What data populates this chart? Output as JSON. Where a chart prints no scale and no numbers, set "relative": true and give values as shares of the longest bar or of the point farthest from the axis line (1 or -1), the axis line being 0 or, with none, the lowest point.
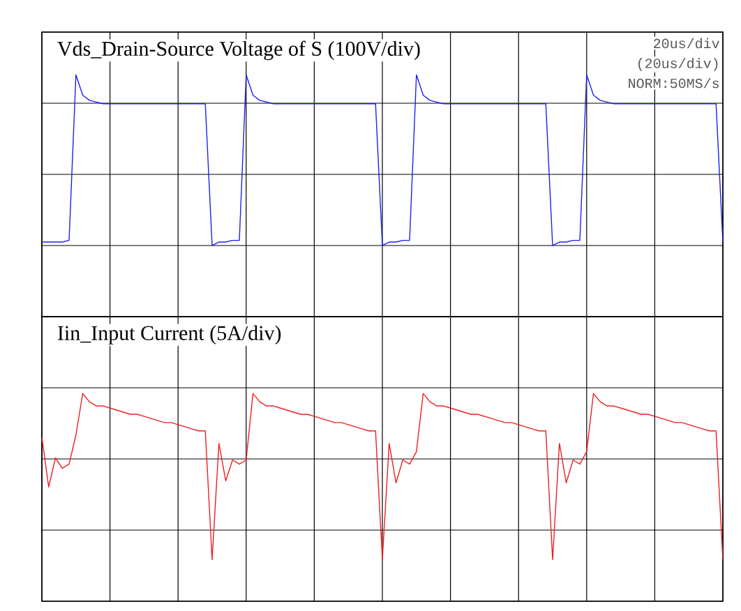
{
  "chart_data": [
    {
      "type": "line",
      "title": "Vds_Drain-Source Voltage of S (100V/div)",
      "relative": true,
      "grid": true,
      "annotations": [
        "20us/div",
        "(20us/div)",
        "NORM:50MS/s"
      ],
      "categories": [
        null,
        null,
        null,
        null,
        null,
        null,
        null,
        null,
        null,
        null,
        null,
        null,
        null,
        null,
        null,
        null,
        null,
        null,
        null,
        null,
        null,
        null,
        null,
        null,
        null,
        null,
        null,
        null,
        null,
        null,
        null,
        null,
        null,
        null,
        null,
        null,
        null,
        null,
        null,
        null,
        null,
        null,
        null,
        null,
        null,
        null,
        null,
        null,
        null,
        null,
        null,
        null,
        null,
        null,
        null,
        null,
        null,
        null,
        null,
        null,
        null,
        null,
        null,
        null,
        null,
        null,
        null,
        null,
        null,
        null,
        null,
        null,
        null,
        null,
        null,
        null,
        null,
        null,
        null,
        null,
        null,
        null,
        null,
        null,
        null,
        null,
        null,
        null,
        null,
        null,
        null,
        null,
        null,
        null,
        null,
        null,
        null,
        null,
        null,
        null,
        null
      ],
      "series": [
        {
          "color": "#1f1ff0",
          "values": [
            0.02,
            0.02,
            0.02,
            0.02,
            0.03,
            1.0,
            0.88,
            0.85,
            0.84,
            0.83,
            0.83,
            0.83,
            0.83,
            0.83,
            0.83,
            0.83,
            0.83,
            0.83,
            0.83,
            0.83,
            0.83,
            0.83,
            0.83,
            0.83,
            0.83,
            0,
            0.02,
            0.02,
            0.03,
            0.03,
            1.0,
            0.88,
            0.85,
            0.84,
            0.83,
            0.83,
            0.83,
            0.83,
            0.83,
            0.83,
            0.83,
            0.83,
            0.83,
            0.83,
            0.83,
            0.83,
            0.83,
            0.83,
            0.83,
            0.83,
            0,
            0.02,
            0.02,
            0.03,
            0.03,
            1.0,
            0.88,
            0.85,
            0.84,
            0.83,
            0.83,
            0.83,
            0.83,
            0.83,
            0.83,
            0.83,
            0.83,
            0.83,
            0.83,
            0.83,
            0.83,
            0.83,
            0.83,
            0.83,
            0.83,
            0,
            0.02,
            0.02,
            0.03,
            0.03,
            1.0,
            0.88,
            0.85,
            0.84,
            0.83,
            0.83,
            0.83,
            0.83,
            0.83,
            0.83,
            0.83,
            0.83,
            0.83,
            0.83,
            0.83,
            0.83,
            0.83,
            0.83,
            0.83,
            0.83,
            0.02
          ]
        }
      ]
    },
    {
      "type": "line",
      "title": "Iin_Input Current (5A/div)",
      "relative": true,
      "grid": true,
      "categories": [
        null,
        null,
        null,
        null,
        null,
        null,
        null,
        null,
        null,
        null,
        null,
        null,
        null,
        null,
        null,
        null,
        null,
        null,
        null,
        null,
        null,
        null,
        null,
        null,
        null,
        null,
        null,
        null,
        null,
        null,
        null,
        null,
        null,
        null,
        null,
        null,
        null,
        null,
        null,
        null,
        null,
        null,
        null,
        null,
        null,
        null,
        null,
        null,
        null,
        null,
        null,
        null,
        null,
        null,
        null,
        null,
        null,
        null,
        null,
        null,
        null,
        null,
        null,
        null,
        null,
        null,
        null,
        null,
        null,
        null,
        null,
        null,
        null,
        null,
        null,
        null,
        null,
        null,
        null,
        null,
        null,
        null,
        null,
        null,
        null,
        null,
        null,
        null,
        null,
        null,
        null,
        null,
        null,
        null,
        null,
        null,
        null,
        null,
        null,
        null,
        null
      ],
      "series": [
        {
          "color": "#f01f1f",
          "values": [
            0.79,
            0.55,
            0.69,
            0.64,
            0.66,
            0.8,
            1.0,
            0.96,
            0.94,
            0.94,
            0.93,
            0.92,
            0.91,
            0.9,
            0.9,
            0.89,
            0.88,
            0.87,
            0.86,
            0.86,
            0.85,
            0.84,
            0.83,
            0.82,
            0.82,
            0.2,
            0.76,
            0.58,
            0.68,
            0.66,
            0.68,
            1.0,
            0.96,
            0.94,
            0.94,
            0.93,
            0.92,
            0.91,
            0.9,
            0.9,
            0.89,
            0.88,
            0.87,
            0.86,
            0.86,
            0.85,
            0.84,
            0.83,
            0.82,
            0.82,
            0.2,
            0.76,
            0.57,
            0.68,
            0.66,
            0.72,
            1.0,
            0.96,
            0.94,
            0.94,
            0.93,
            0.92,
            0.91,
            0.9,
            0.9,
            0.89,
            0.88,
            0.87,
            0.86,
            0.86,
            0.85,
            0.84,
            0.83,
            0.82,
            0.82,
            0.2,
            0.76,
            0.57,
            0.68,
            0.66,
            0.72,
            1.0,
            0.96,
            0.94,
            0.94,
            0.93,
            0.92,
            0.91,
            0.9,
            0.9,
            0.89,
            0.88,
            0.87,
            0.86,
            0.86,
            0.85,
            0.84,
            0.83,
            0.82,
            0.82,
            0.2
          ]
        }
      ]
    }
  ]
}
